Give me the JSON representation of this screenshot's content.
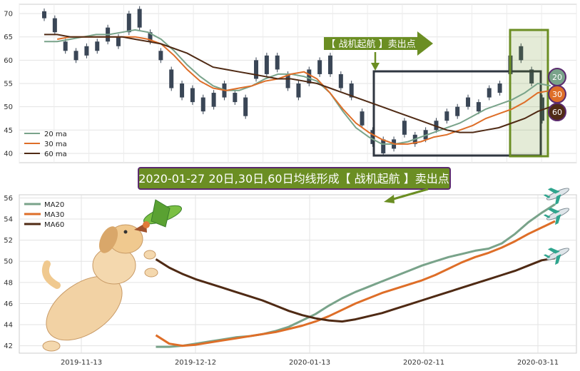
{
  "chart_data": [
    {
      "type": "candlestick",
      "ylim": [
        38,
        72
      ],
      "yticks": [
        "70",
        "65",
        "60",
        "55",
        "50",
        "45",
        "40"
      ],
      "legend": [
        "20 ma",
        "30 ma",
        "60 ma"
      ],
      "legend_position": "bottom-left",
      "grid": true,
      "candle_color": "#3a4656",
      "series": [
        {
          "name": "20 ma",
          "color": "#79a38a",
          "values": [
            64,
            64,
            64.5,
            65,
            65.5,
            65.5,
            66,
            66.5,
            66,
            64.5,
            62,
            59,
            56.5,
            54.5,
            53.5,
            53.5,
            54.5,
            56,
            57,
            57,
            56.5,
            55.5,
            53,
            49,
            45.5,
            43.5,
            42,
            42,
            42.5,
            43.5,
            44.5,
            45.5,
            46.5,
            48,
            49.5,
            50.5,
            51.5,
            53,
            55,
            54.5
          ]
        },
        {
          "name": "30 ma",
          "color": "#de6e28",
          "values": [
            null,
            64.5,
            65,
            65,
            65,
            65,
            65,
            65,
            64.5,
            63.5,
            61,
            58,
            55.5,
            54,
            53.5,
            54,
            54.5,
            55.5,
            56,
            57,
            57.5,
            56,
            53,
            49.5,
            46.5,
            44.5,
            43,
            42,
            42,
            42.5,
            43.5,
            44,
            45,
            46,
            47.5,
            48.5,
            49.5,
            51,
            53,
            53.5
          ]
        },
        {
          "name": "60 ma",
          "color": "#4f2a14",
          "values": [
            65.5,
            65.5,
            65,
            65,
            65,
            65,
            65,
            64.5,
            64,
            63.5,
            62.5,
            61.5,
            60,
            58.5,
            58,
            57.5,
            57,
            56.5,
            56,
            56,
            55.5,
            55,
            54,
            53,
            52,
            51,
            50,
            49,
            48,
            47,
            46,
            45,
            44.5,
            44.5,
            45,
            45.5,
            46.5,
            47.5,
            49,
            50
          ]
        }
      ],
      "candles": [
        [
          69,
          70.5
        ],
        [
          66,
          69
        ],
        [
          62,
          64
        ],
        [
          60,
          62
        ],
        [
          61,
          63
        ],
        [
          62,
          64
        ],
        [
          64,
          67
        ],
        [
          63,
          65
        ],
        [
          66,
          70
        ],
        [
          67,
          71
        ],
        [
          64,
          66
        ],
        [
          60,
          62
        ],
        [
          54,
          58
        ],
        [
          52,
          55
        ],
        [
          51,
          54
        ],
        [
          49,
          52
        ],
        [
          50,
          53
        ],
        [
          52,
          55
        ],
        [
          51,
          53
        ],
        [
          48,
          52
        ],
        [
          56,
          60
        ],
        [
          57,
          61
        ],
        [
          58,
          61
        ],
        [
          54,
          57
        ],
        [
          52,
          55
        ],
        [
          55,
          58
        ],
        [
          57,
          60
        ],
        [
          57,
          61
        ],
        [
          54,
          57
        ],
        [
          52,
          55
        ],
        [
          46,
          49
        ],
        [
          42,
          45
        ],
        [
          40,
          43
        ],
        [
          41,
          43
        ],
        [
          44,
          47
        ],
        [
          42,
          44
        ],
        [
          43,
          45
        ],
        [
          45,
          47
        ],
        [
          47,
          49
        ],
        [
          48,
          50
        ],
        [
          50,
          52
        ],
        [
          49,
          51
        ],
        [
          52,
          54
        ],
        [
          53,
          55
        ],
        [
          57,
          61
        ],
        [
          60,
          63
        ],
        [
          55,
          58
        ],
        [
          47,
          52
        ]
      ],
      "annotation": "【 战机起航 】卖出点",
      "end_badges": [
        "20",
        "30",
        "60"
      ]
    },
    {
      "type": "line",
      "xlabels": [
        "2019-11-13",
        "2019-12-12",
        "2020-01-13",
        "2020-02-11",
        "2020-03-11"
      ],
      "yticks": [
        "56",
        "54",
        "52",
        "50",
        "48",
        "46",
        "44",
        "42"
      ],
      "ylim": [
        41.3,
        56.3
      ],
      "legend": [
        "MA20",
        "MA30",
        "MA60"
      ],
      "legend_position": "top-left",
      "grid": true,
      "series": [
        {
          "name": "MA20",
          "color": "#79a38a",
          "values": [
            null,
            null,
            null,
            null,
            null,
            null,
            null,
            null,
            null,
            null,
            41.9,
            41.9,
            42,
            42.2,
            42.4,
            42.6,
            42.8,
            42.9,
            43.1,
            43.4,
            43.8,
            44.4,
            45,
            45.8,
            46.5,
            47.1,
            47.6,
            48.1,
            48.6,
            49.1,
            49.6,
            50,
            50.4,
            50.7,
            51,
            51.2,
            51.7,
            52.6,
            53.7,
            54.6,
            55.4
          ]
        },
        {
          "name": "MA30",
          "color": "#de6e28",
          "values": [
            null,
            null,
            null,
            null,
            null,
            null,
            null,
            null,
            null,
            null,
            43,
            42.2,
            42,
            42.1,
            42.3,
            42.5,
            42.7,
            42.9,
            43.1,
            43.3,
            43.6,
            43.9,
            44.3,
            44.8,
            45.4,
            46,
            46.5,
            47,
            47.4,
            47.8,
            48.2,
            48.7,
            49.3,
            49.9,
            50.4,
            50.8,
            51.3,
            51.9,
            52.6,
            53.2,
            53.8
          ]
        },
        {
          "name": "MA60",
          "color": "#4f2a14",
          "values": [
            null,
            null,
            null,
            null,
            null,
            null,
            null,
            null,
            null,
            null,
            50.2,
            49.4,
            48.8,
            48.3,
            47.9,
            47.5,
            47.1,
            46.7,
            46.3,
            45.8,
            45.3,
            44.9,
            44.6,
            44.4,
            44.3,
            44.5,
            44.8,
            45.1,
            45.5,
            45.9,
            46.3,
            46.7,
            47.1,
            47.5,
            47.9,
            48.3,
            48.7,
            49.1,
            49.6,
            50.1,
            50.3
          ]
        }
      ],
      "banner": "2020-01-27 20日,30日,60日均线形成【 战机起航 】卖出点"
    }
  ]
}
